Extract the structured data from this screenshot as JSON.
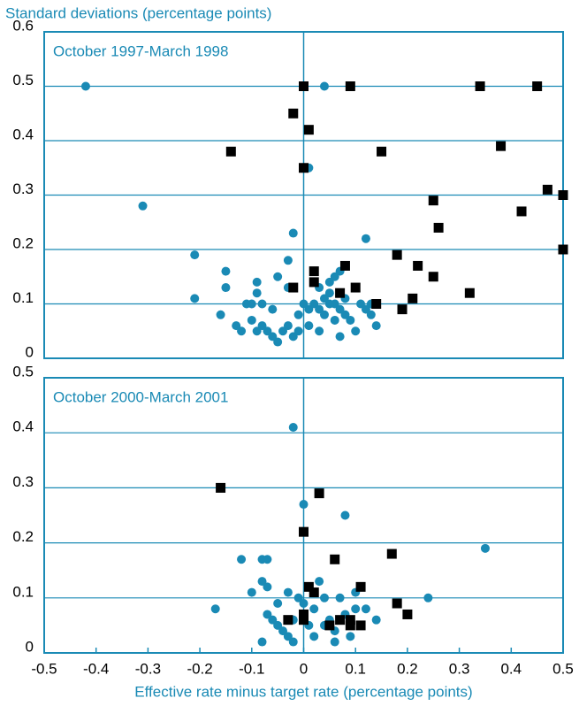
{
  "chart_data": [
    {
      "type": "scatter",
      "title": "October 1997-March 1998",
      "ylabel": "Standard deviations (percentage points)",
      "xlim": [
        -0.5,
        0.5
      ],
      "ylim": [
        0,
        0.6
      ],
      "yticks": [
        0,
        0.1,
        0.2,
        0.3,
        0.4,
        0.5,
        0.6
      ],
      "grid": true,
      "zero_line": true,
      "series": [
        {
          "color": "#1a8ab5",
          "marker": "circle",
          "x": [
            -0.42,
            0.04,
            0.01,
            -0.31,
            -0.02,
            0.12,
            -0.21,
            -0.03,
            -0.15,
            -0.21,
            -0.15,
            -0.09,
            -0.05,
            -0.09,
            -0.03,
            0.06,
            0.05,
            0.07,
            0.03,
            0.05,
            -0.16,
            -0.13,
            -0.1,
            -0.11,
            -0.08,
            -0.06,
            -0.1,
            -0.08,
            -0.07,
            -0.06,
            -0.05,
            -0.04,
            -0.03,
            -0.02,
            -0.01,
            0,
            0.01,
            0.02,
            0.03,
            0.04,
            0.05,
            0.06,
            0.07,
            0.08,
            0.09,
            0.1,
            0.11,
            0.12,
            0.13,
            0.14,
            0.07,
            0.03,
            -0.01,
            0.01,
            -0.12,
            -0.09,
            0.04,
            0.06,
            0.08,
            0.13
          ],
          "values": [
            0.5,
            0.5,
            0.35,
            0.28,
            0.23,
            0.22,
            0.19,
            0.18,
            0.16,
            0.11,
            0.13,
            0.14,
            0.15,
            0.12,
            0.13,
            0.15,
            0.14,
            0.16,
            0.13,
            0.12,
            0.08,
            0.06,
            0.1,
            0.1,
            0.1,
            0.09,
            0.07,
            0.06,
            0.05,
            0.04,
            0.03,
            0.05,
            0.06,
            0.04,
            0.08,
            0.1,
            0.09,
            0.1,
            0.09,
            0.08,
            0.1,
            0.07,
            0.09,
            0.08,
            0.07,
            0.05,
            0.1,
            0.09,
            0.08,
            0.06,
            0.04,
            0.05,
            0.05,
            0.06,
            0.05,
            0.05,
            0.11,
            0.1,
            0.11,
            0.1
          ]
        },
        {
          "color": "#000000",
          "marker": "square",
          "x": [
            0,
            0.09,
            0.34,
            0.45,
            -0.02,
            0.01,
            -0.14,
            0.15,
            0,
            0.38,
            0.47,
            0.5,
            0.25,
            0.42,
            0.26,
            0.5,
            0.18,
            0.02,
            0.08,
            0.22,
            0.25,
            0.02,
            -0.02,
            0.1,
            0.32,
            0.07,
            0.21,
            0.14,
            0.19
          ],
          "values": [
            0.5,
            0.5,
            0.5,
            0.5,
            0.45,
            0.42,
            0.38,
            0.38,
            0.35,
            0.39,
            0.31,
            0.3,
            0.29,
            0.27,
            0.24,
            0.2,
            0.19,
            0.16,
            0.17,
            0.17,
            0.15,
            0.14,
            0.13,
            0.13,
            0.12,
            0.12,
            0.11,
            0.1,
            0.09
          ]
        }
      ]
    },
    {
      "type": "scatter",
      "title": "October 2000-March 2001",
      "xlabel": "Effective rate minus target rate (percentage points)",
      "xlim": [
        -0.5,
        0.5
      ],
      "xticks": [
        -0.5,
        -0.4,
        -0.3,
        -0.2,
        -0.1,
        0,
        0.1,
        0.2,
        0.3,
        0.4,
        0.5
      ],
      "ylim": [
        0,
        0.5
      ],
      "yticks": [
        0,
        0.1,
        0.2,
        0.3,
        0.4,
        0.5
      ],
      "grid": true,
      "zero_line": true,
      "series": [
        {
          "color": "#1a8ab5",
          "marker": "circle",
          "x": [
            -0.02,
            0,
            0.08,
            0.35,
            -0.12,
            -0.07,
            -0.08,
            -0.08,
            -0.07,
            -0.1,
            -0.17,
            -0.08,
            -0.07,
            -0.06,
            -0.05,
            -0.04,
            -0.03,
            -0.03,
            -0.02,
            -0.01,
            0,
            0.01,
            0.02,
            0.03,
            0.04,
            0.05,
            0.06,
            0.07,
            0.08,
            0.09,
            0.1,
            0.1,
            0.12,
            0.14,
            0.24,
            -0.05,
            0.02,
            0.06,
            -0.02,
            0.04
          ],
          "values": [
            0.41,
            0.27,
            0.25,
            0.19,
            0.17,
            0.17,
            0.17,
            0.13,
            0.12,
            0.11,
            0.08,
            0.02,
            0.07,
            0.06,
            0.05,
            0.04,
            0.11,
            0.03,
            0.06,
            0.1,
            0.09,
            0.05,
            0.03,
            0.13,
            0.1,
            0.06,
            0.04,
            0.1,
            0.07,
            0.03,
            0.08,
            0.11,
            0.08,
            0.06,
            0.1,
            0.09,
            0.08,
            0.02,
            0.02,
            0.05
          ]
        },
        {
          "color": "#000000",
          "marker": "square",
          "x": [
            -0.16,
            0.03,
            0,
            0.06,
            0.17,
            0.01,
            0.02,
            0.11,
            0.18,
            0.2,
            0,
            -0.03,
            0,
            0.07,
            0.09,
            0.09,
            0.05,
            0.11
          ],
          "values": [
            0.3,
            0.29,
            0.22,
            0.17,
            0.18,
            0.12,
            0.11,
            0.12,
            0.09,
            0.07,
            0.07,
            0.06,
            0.06,
            0.06,
            0.06,
            0.05,
            0.05,
            0.05
          ]
        }
      ]
    }
  ]
}
